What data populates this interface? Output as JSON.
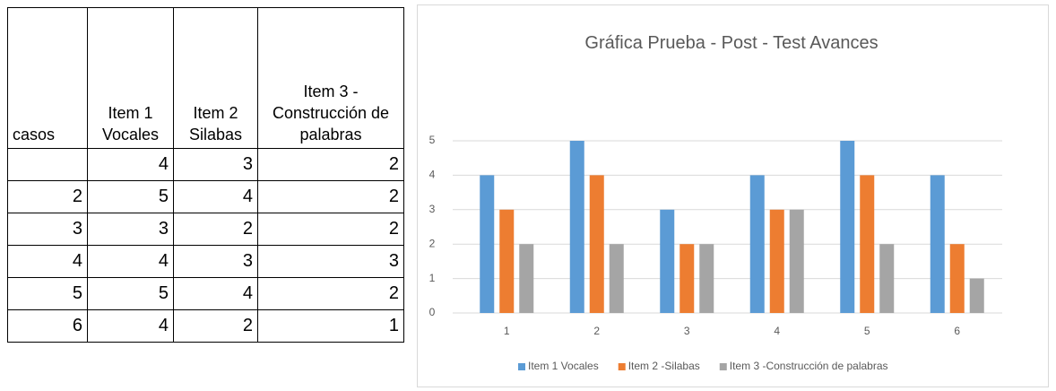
{
  "table": {
    "header": [
      "casos",
      "Item 1 Vocales",
      "Item 2 Silabas",
      "Item 3 - Construcción de palabras"
    ],
    "rows": [
      [
        null,
        "4",
        "3",
        "2"
      ],
      [
        "2",
        "5",
        "4",
        "2"
      ],
      [
        "3",
        "3",
        "2",
        "2"
      ],
      [
        "4",
        "4",
        "3",
        "3"
      ],
      [
        "5",
        "5",
        "4",
        "2"
      ],
      [
        "6",
        "4",
        "2",
        "1"
      ]
    ]
  },
  "chart_data": {
    "type": "bar",
    "title": "Gráfica Prueba - Post - Test Avances",
    "categories": [
      "1",
      "2",
      "3",
      "4",
      "5",
      "6"
    ],
    "series": [
      {
        "name": "Item 1 Vocales",
        "color": "#5b9bd5",
        "values": [
          4,
          5,
          3,
          4,
          5,
          4
        ]
      },
      {
        "name": "Item 2 -Silabas",
        "color": "#ed7d31",
        "values": [
          3,
          4,
          2,
          3,
          4,
          2
        ]
      },
      {
        "name": "Item 3 -Construcción de palabras",
        "color": "#a5a5a5",
        "values": [
          2,
          2,
          2,
          3,
          2,
          1
        ]
      }
    ],
    "ylim": [
      0,
      5
    ],
    "yticks": [
      0,
      1,
      2,
      3,
      4,
      5
    ],
    "grid": true,
    "legend": "bottom"
  }
}
